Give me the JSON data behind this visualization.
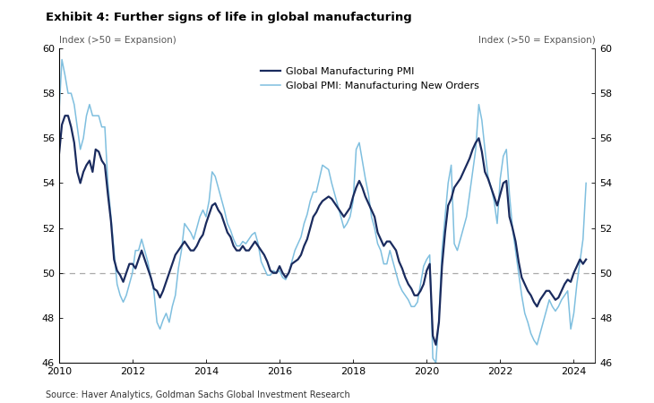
{
  "title": "Exhibit 4: Further signs of life in global manufacturing",
  "ylabel_left": "Index (>50 = Expansion)",
  "ylabel_right": "Index (>50 = Expansion)",
  "source": "Source: Haver Analytics, Goldman Sachs Global Investment Research",
  "ylim": [
    46,
    60
  ],
  "yticks": [
    46,
    48,
    50,
    52,
    54,
    56,
    58,
    60
  ],
  "dashed_line_y": 50,
  "legend1": "Global Manufacturing PMI",
  "legend2": "Global PMI: Manufacturing New Orders",
  "line1_color": "#1a2b5e",
  "line2_color": "#7fbfdf",
  "background_color": "#ffffff",
  "dates": [
    2010.0,
    2010.083,
    2010.167,
    2010.25,
    2010.333,
    2010.417,
    2010.5,
    2010.583,
    2010.667,
    2010.75,
    2010.833,
    2010.917,
    2011.0,
    2011.083,
    2011.167,
    2011.25,
    2011.333,
    2011.417,
    2011.5,
    2011.583,
    2011.667,
    2011.75,
    2011.833,
    2011.917,
    2012.0,
    2012.083,
    2012.167,
    2012.25,
    2012.333,
    2012.417,
    2012.5,
    2012.583,
    2012.667,
    2012.75,
    2012.833,
    2012.917,
    2013.0,
    2013.083,
    2013.167,
    2013.25,
    2013.333,
    2013.417,
    2013.5,
    2013.583,
    2013.667,
    2013.75,
    2013.833,
    2013.917,
    2014.0,
    2014.083,
    2014.167,
    2014.25,
    2014.333,
    2014.417,
    2014.5,
    2014.583,
    2014.667,
    2014.75,
    2014.833,
    2014.917,
    2015.0,
    2015.083,
    2015.167,
    2015.25,
    2015.333,
    2015.417,
    2015.5,
    2015.583,
    2015.667,
    2015.75,
    2015.833,
    2015.917,
    2016.0,
    2016.083,
    2016.167,
    2016.25,
    2016.333,
    2016.417,
    2016.5,
    2016.583,
    2016.667,
    2016.75,
    2016.833,
    2016.917,
    2017.0,
    2017.083,
    2017.167,
    2017.25,
    2017.333,
    2017.417,
    2017.5,
    2017.583,
    2017.667,
    2017.75,
    2017.833,
    2017.917,
    2018.0,
    2018.083,
    2018.167,
    2018.25,
    2018.333,
    2018.417,
    2018.5,
    2018.583,
    2018.667,
    2018.75,
    2018.833,
    2018.917,
    2019.0,
    2019.083,
    2019.167,
    2019.25,
    2019.333,
    2019.417,
    2019.5,
    2019.583,
    2019.667,
    2019.75,
    2019.833,
    2019.917,
    2020.0,
    2020.083,
    2020.167,
    2020.25,
    2020.333,
    2020.417,
    2020.5,
    2020.583,
    2020.667,
    2020.75,
    2020.833,
    2020.917,
    2021.0,
    2021.083,
    2021.167,
    2021.25,
    2021.333,
    2021.417,
    2021.5,
    2021.583,
    2021.667,
    2021.75,
    2021.833,
    2021.917,
    2022.0,
    2022.083,
    2022.167,
    2022.25,
    2022.333,
    2022.417,
    2022.5,
    2022.583,
    2022.667,
    2022.75,
    2022.833,
    2022.917,
    2023.0,
    2023.083,
    2023.167,
    2023.25,
    2023.333,
    2023.417,
    2023.5,
    2023.583,
    2023.667,
    2023.75,
    2023.833,
    2023.917,
    2024.0,
    2024.083,
    2024.167,
    2024.25,
    2024.333
  ],
  "pmi": [
    55.2,
    56.6,
    57.0,
    57.0,
    56.5,
    55.8,
    54.5,
    54.0,
    54.5,
    54.8,
    55.0,
    54.5,
    55.5,
    55.4,
    55.0,
    54.8,
    53.5,
    52.3,
    50.6,
    50.1,
    49.9,
    49.6,
    50.0,
    50.4,
    50.4,
    50.2,
    50.6,
    51.0,
    50.6,
    50.2,
    49.8,
    49.3,
    49.2,
    48.9,
    49.2,
    49.6,
    50.0,
    50.4,
    50.8,
    51.0,
    51.2,
    51.4,
    51.2,
    51.0,
    51.0,
    51.2,
    51.5,
    51.7,
    52.2,
    52.6,
    53.0,
    53.1,
    52.8,
    52.6,
    52.2,
    51.8,
    51.6,
    51.2,
    51.0,
    51.0,
    51.2,
    51.0,
    51.0,
    51.2,
    51.4,
    51.2,
    51.0,
    50.8,
    50.5,
    50.1,
    50.0,
    50.0,
    50.3,
    50.0,
    49.8,
    50.0,
    50.4,
    50.5,
    50.6,
    50.8,
    51.2,
    51.5,
    52.0,
    52.5,
    52.7,
    53.0,
    53.2,
    53.3,
    53.4,
    53.3,
    53.1,
    52.9,
    52.7,
    52.5,
    52.7,
    52.9,
    53.4,
    53.8,
    54.1,
    53.8,
    53.4,
    53.1,
    52.8,
    52.5,
    51.8,
    51.5,
    51.2,
    51.4,
    51.4,
    51.2,
    51.0,
    50.5,
    50.2,
    49.8,
    49.5,
    49.3,
    49.0,
    49.0,
    49.2,
    49.5,
    50.1,
    50.4,
    47.2,
    46.8,
    47.8,
    50.3,
    51.8,
    53.0,
    53.3,
    53.8,
    54.0,
    54.2,
    54.5,
    54.8,
    55.1,
    55.5,
    55.8,
    56.0,
    55.4,
    54.5,
    54.2,
    53.8,
    53.4,
    53.0,
    53.5,
    54.0,
    54.1,
    52.5,
    52.0,
    51.4,
    50.5,
    49.8,
    49.5,
    49.2,
    49.0,
    48.7,
    48.5,
    48.8,
    49.0,
    49.2,
    49.2,
    49.0,
    48.8,
    48.9,
    49.2,
    49.5,
    49.7,
    49.6,
    50.0,
    50.3,
    50.6,
    50.4,
    50.6
  ],
  "new_orders": [
    57.0,
    59.5,
    58.8,
    58.0,
    58.0,
    57.5,
    56.5,
    55.5,
    56.0,
    57.0,
    57.5,
    57.0,
    57.0,
    57.0,
    56.5,
    56.5,
    54.0,
    52.5,
    51.0,
    49.5,
    49.0,
    48.7,
    49.0,
    49.5,
    50.0,
    51.0,
    51.0,
    51.5,
    51.0,
    50.5,
    49.8,
    49.2,
    47.8,
    47.5,
    47.9,
    48.2,
    47.8,
    48.5,
    49.0,
    50.2,
    51.0,
    52.2,
    52.0,
    51.8,
    51.5,
    52.0,
    52.5,
    52.8,
    52.5,
    53.2,
    54.5,
    54.3,
    53.8,
    53.3,
    52.8,
    52.2,
    51.9,
    51.5,
    51.2,
    51.2,
    51.4,
    51.3,
    51.5,
    51.7,
    51.8,
    51.3,
    50.5,
    50.2,
    49.9,
    49.9,
    50.1,
    50.0,
    50.1,
    49.8,
    49.7,
    50.0,
    50.5,
    51.0,
    51.3,
    51.6,
    52.2,
    52.6,
    53.2,
    53.6,
    53.6,
    54.2,
    54.8,
    54.7,
    54.6,
    54.0,
    53.5,
    53.0,
    52.5,
    52.0,
    52.2,
    52.5,
    53.2,
    55.5,
    55.8,
    55.0,
    54.2,
    53.5,
    52.5,
    52.0,
    51.3,
    51.0,
    50.4,
    50.4,
    51.0,
    50.5,
    50.0,
    49.5,
    49.2,
    49.0,
    48.8,
    48.5,
    48.5,
    48.7,
    49.5,
    50.3,
    50.6,
    50.8,
    46.2,
    46.0,
    48.0,
    51.0,
    52.5,
    54.0,
    54.8,
    51.3,
    51.0,
    51.5,
    52.0,
    52.5,
    53.5,
    54.5,
    55.5,
    57.5,
    56.8,
    55.5,
    54.3,
    53.8,
    53.2,
    52.2,
    54.2,
    55.2,
    55.5,
    53.5,
    52.0,
    51.0,
    50.0,
    49.0,
    48.2,
    47.8,
    47.3,
    47.0,
    46.8,
    47.3,
    47.8,
    48.3,
    48.8,
    48.5,
    48.3,
    48.5,
    48.8,
    49.0,
    49.2,
    47.5,
    48.2,
    49.5,
    50.5,
    51.5,
    54.0
  ]
}
